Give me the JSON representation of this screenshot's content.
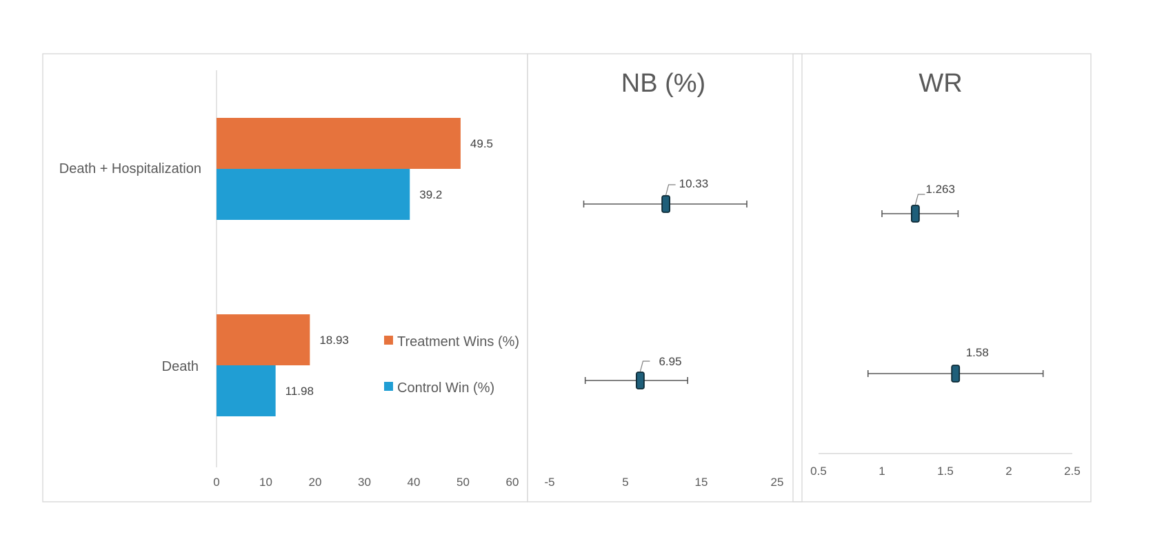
{
  "chart_data": [
    {
      "type": "bar",
      "orientation": "horizontal",
      "categories": [
        "Death + Hospitalization",
        "Death"
      ],
      "series": [
        {
          "name": "Treatment Wins (%)",
          "values": [
            49.5,
            18.93
          ],
          "color": "#E6733D"
        },
        {
          "name": "Control Win (%)",
          "values": [
            39.2,
            11.98
          ],
          "color": "#209ED4"
        }
      ],
      "xlim": [
        0,
        60
      ],
      "xticks": [
        0,
        10,
        20,
        30,
        40,
        50,
        60
      ],
      "data_labels": true,
      "legend_position": "right",
      "grid": false
    },
    {
      "type": "scatter",
      "title": "NB (%)",
      "categories": [
        "Death + Hospitalization",
        "Death"
      ],
      "estimates": [
        10.33,
        6.95
      ],
      "ci_low": [
        -0.5,
        -0.3
      ],
      "ci_high": [
        21.0,
        13.2
      ],
      "xlim": [
        -5,
        25
      ],
      "xticks": [
        -5,
        5,
        15,
        25
      ],
      "marker_color": "#1F5F7A",
      "grid": false
    },
    {
      "type": "scatter",
      "title": "WR",
      "categories": [
        "Death + Hospitalization",
        "Death"
      ],
      "estimates": [
        1.263,
        1.58
      ],
      "ci_low": [
        1.0,
        0.89
      ],
      "ci_high": [
        1.6,
        2.27
      ],
      "xlim": [
        0.5,
        2.5
      ],
      "xticks": [
        0.5,
        1,
        1.5,
        2,
        2.5
      ],
      "marker_color": "#1F5F7A",
      "grid": false
    }
  ]
}
